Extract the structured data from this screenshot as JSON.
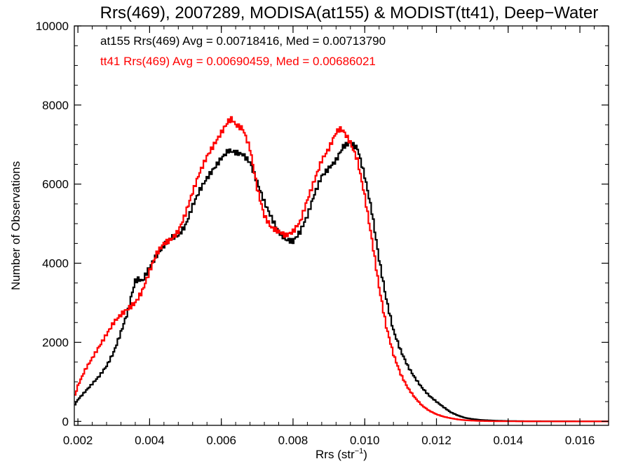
{
  "chart_data": {
    "type": "line",
    "title": "Rrs(469), 2007289, MODISA(at155) & MODIST(tt41), Deep−Water",
    "xlabel": "Rrs (str",
    "xlabel_sup": "−1",
    "xlabel_close": ")",
    "ylabel": "Number of Observations",
    "xlim": [
      0.0019,
      0.0168
    ],
    "ylim": [
      -100,
      10000
    ],
    "x_ticks": [
      0.002,
      0.004,
      0.006,
      0.008,
      0.01,
      0.012,
      0.014,
      0.016
    ],
    "x_tick_labels": [
      "0.002",
      "0.004",
      "0.006",
      "0.008",
      "0.010",
      "0.012",
      "0.014",
      "0.016"
    ],
    "y_ticks": [
      0,
      2000,
      4000,
      6000,
      8000,
      10000
    ],
    "y_tick_labels": [
      "0",
      "2000",
      "4000",
      "6000",
      "8000",
      "10000"
    ],
    "grid": false,
    "annotations": [
      "at155 Rrs(469) Avg = 0.00718416, Med = 0.00713790",
      "tt41 Rrs(469) Avg = 0.00690459, Med = 0.00686021"
    ],
    "series": [
      {
        "color": "#000000",
        "x": [
          0.0019,
          0.002,
          0.0022,
          0.0024,
          0.0026,
          0.0028,
          0.003,
          0.0032,
          0.0034,
          0.0035,
          0.0036,
          0.0037,
          0.0038,
          0.004,
          0.0042,
          0.0044,
          0.0046,
          0.0048,
          0.005,
          0.0052,
          0.0054,
          0.0056,
          0.0058,
          0.006,
          0.0062,
          0.0064,
          0.0066,
          0.0068,
          0.007,
          0.0072,
          0.0074,
          0.0076,
          0.0078,
          0.008,
          0.0082,
          0.0084,
          0.0086,
          0.0088,
          0.009,
          0.0092,
          0.0094,
          0.0096,
          0.0098,
          0.01,
          0.0102,
          0.0104,
          0.0106,
          0.0108,
          0.011,
          0.0112,
          0.0114,
          0.0116,
          0.0118,
          0.012,
          0.0122,
          0.0124,
          0.0126,
          0.0128,
          0.013,
          0.0132,
          0.0134,
          0.0136,
          0.0138,
          0.014,
          0.0145,
          0.015,
          0.0155,
          0.016,
          0.0168
        ],
        "y": [
          400,
          550,
          750,
          950,
          1150,
          1400,
          1750,
          2250,
          2800,
          3200,
          3550,
          3600,
          3550,
          3900,
          4200,
          4450,
          4650,
          4700,
          4950,
          5450,
          5850,
          6150,
          6400,
          6650,
          6850,
          6800,
          6750,
          6550,
          6050,
          5550,
          5150,
          4800,
          4600,
          4550,
          4800,
          5200,
          5750,
          6200,
          6400,
          6600,
          6950,
          7050,
          6900,
          6200,
          5300,
          4100,
          3100,
          2300,
          1800,
          1400,
          1100,
          850,
          650,
          500,
          360,
          230,
          150,
          90,
          60,
          40,
          30,
          20,
          15,
          10,
          5,
          3,
          2,
          1,
          0
        ]
      },
      {
        "color": "#ff0000",
        "x": [
          0.0019,
          0.002,
          0.0022,
          0.0024,
          0.0026,
          0.0028,
          0.003,
          0.0032,
          0.0034,
          0.0036,
          0.0038,
          0.004,
          0.0042,
          0.0044,
          0.0046,
          0.0048,
          0.005,
          0.0052,
          0.0054,
          0.0056,
          0.0058,
          0.006,
          0.0062,
          0.0063,
          0.0064,
          0.0066,
          0.0068,
          0.007,
          0.0072,
          0.0074,
          0.0076,
          0.0078,
          0.008,
          0.0082,
          0.0084,
          0.0086,
          0.0088,
          0.009,
          0.0092,
          0.0093,
          0.0094,
          0.0096,
          0.0098,
          0.01,
          0.0102,
          0.0104,
          0.0106,
          0.0108,
          0.011,
          0.0112,
          0.0114,
          0.0116,
          0.0118,
          0.012,
          0.0122,
          0.0124,
          0.0126,
          0.0128,
          0.013,
          0.0132,
          0.0134,
          0.0136,
          0.014,
          0.0145,
          0.015,
          0.0155,
          0.016,
          0.0168
        ],
        "y": [
          600,
          900,
          1300,
          1600,
          1900,
          2200,
          2500,
          2700,
          2850,
          3000,
          3300,
          3800,
          4250,
          4500,
          4600,
          4800,
          5250,
          5800,
          6300,
          6700,
          7000,
          7300,
          7600,
          7650,
          7500,
          7400,
          6900,
          5900,
          5200,
          4900,
          4800,
          4700,
          4800,
          5050,
          5600,
          6100,
          6600,
          6900,
          7300,
          7400,
          7350,
          7050,
          6600,
          5700,
          4600,
          3400,
          2400,
          1700,
          1200,
          850,
          600,
          400,
          270,
          180,
          120,
          80,
          50,
          30,
          20,
          12,
          8,
          5,
          3,
          2,
          1,
          0,
          0,
          0
        ]
      }
    ]
  }
}
